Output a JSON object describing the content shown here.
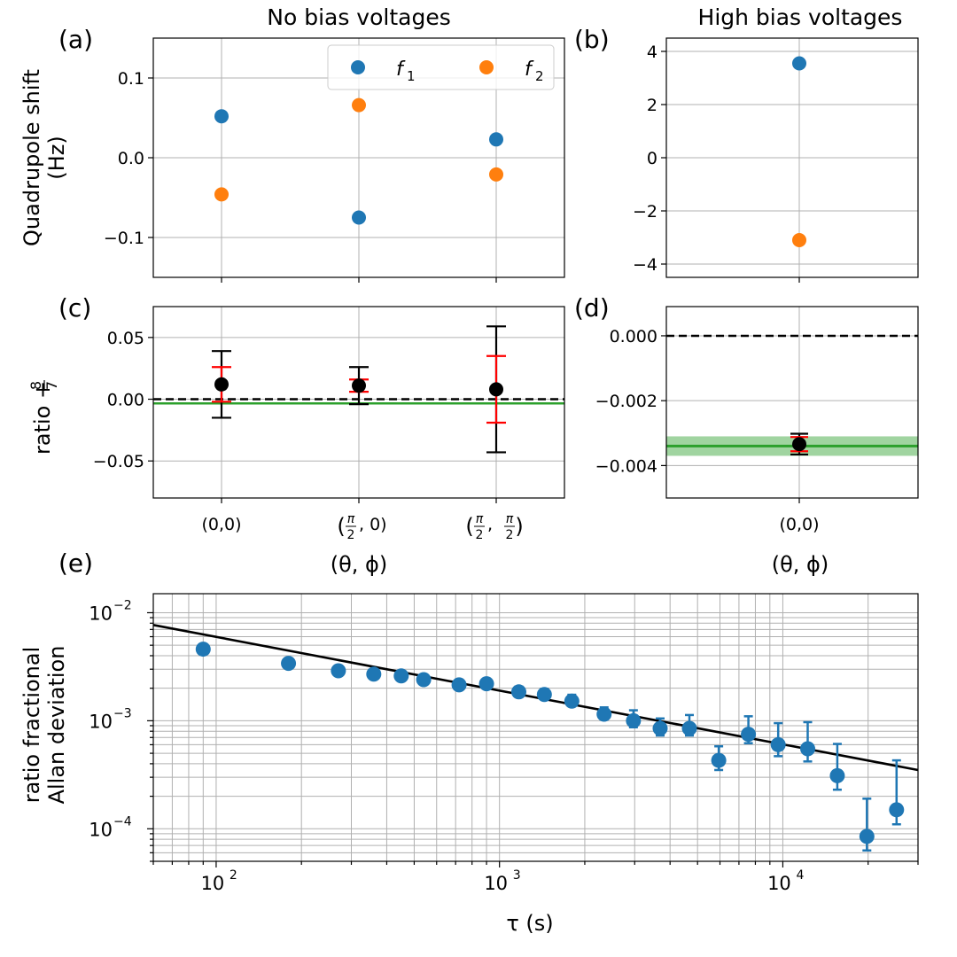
{
  "titles": {
    "left": "No bias voltages",
    "right": "High bias voltages"
  },
  "panel_labels": [
    "(a)",
    "(b)",
    "(c)",
    "(d)",
    "(e)"
  ],
  "ylabels": {
    "top_line1": "Quadrupole shift",
    "top_line2": "(Hz)",
    "ratio_prefix": "ratio +",
    "ratio_num": "8",
    "ratio_den": "7",
    "allan_line1": "ratio fractional",
    "allan_line2": "Allan deviation"
  },
  "xlabels": {
    "theta_phi": "(θ, ϕ)",
    "tau": "τ (s)"
  },
  "colors": {
    "f1": "#1f77b4",
    "f2": "#ff7f0e",
    "black": "#000000",
    "red": "#ff0000",
    "green": "#2ca02c"
  },
  "legend": [
    {
      "name": "f",
      "sub": "1",
      "color": "#1f77b4"
    },
    {
      "name": "f",
      "sub": "2",
      "color": "#ff7f0e"
    }
  ],
  "chart_data": [
    {
      "id": "a",
      "type": "scatter",
      "categories": [
        "(0,0)",
        "(π/2, 0)",
        "(π/2, π/2)"
      ],
      "ylim": [
        -0.15,
        0.15
      ],
      "yticks": [
        -0.1,
        0.0,
        0.1
      ],
      "ytick_labels": [
        "−0.1",
        "0.0",
        "0.1"
      ],
      "series": [
        {
          "name": "f1",
          "values": [
            0.052,
            -0.075,
            0.023
          ]
        },
        {
          "name": "f2",
          "values": [
            -0.046,
            0.066,
            -0.021
          ]
        }
      ]
    },
    {
      "id": "b",
      "type": "scatter",
      "categories": [
        "(0,0)"
      ],
      "ylim": [
        -4.5,
        4.5
      ],
      "yticks": [
        -4,
        -2,
        0,
        2,
        4
      ],
      "ytick_labels": [
        "−4",
        "−2",
        "0",
        "2",
        "4"
      ],
      "series": [
        {
          "name": "f1",
          "values": [
            3.55
          ]
        },
        {
          "name": "f2",
          "values": [
            -3.1
          ]
        }
      ]
    },
    {
      "id": "c",
      "type": "scatter",
      "categories": [
        "(0,0)",
        "(π/2, 0)",
        "(π/2, π/2)"
      ],
      "tick_labels": [
        {
          "text": "(0,0)"
        },
        {
          "pre": "(",
          "f1": "π",
          "d1": "2",
          "mid": ", 0)"
        },
        {
          "pre": "(",
          "f1": "π",
          "d1": "2",
          "mid": ", ",
          "f2": "π",
          "d2": "2",
          "post": ")"
        }
      ],
      "ylim": [
        -0.08,
        0.075
      ],
      "yticks": [
        -0.05,
        0.0,
        0.05
      ],
      "ytick_labels": [
        "−0.05",
        "0.00",
        "0.05"
      ],
      "points": [
        {
          "y": 0.012,
          "err_black": 0.027,
          "err_red": 0.014
        },
        {
          "y": 0.011,
          "err_black": 0.015,
          "err_red": 0.005
        },
        {
          "y": 0.008,
          "err_black": 0.051,
          "err_red": 0.027
        }
      ],
      "reference_dashed": 0.0,
      "green_line": -0.0034
    },
    {
      "id": "d",
      "type": "scatter",
      "categories": [
        "(0,0)"
      ],
      "ylim": [
        -0.005,
        0.0009
      ],
      "yticks": [
        -0.004,
        -0.002,
        0.0
      ],
      "ytick_labels": [
        "−0.004",
        "−0.002",
        "0.000"
      ],
      "points": [
        {
          "y": -0.00334,
          "err_black": 0.00032,
          "err_red": 0.00022
        }
      ],
      "reference_dashed": 0.0,
      "green_line": -0.0034,
      "green_band": [
        -0.0037,
        -0.0031
      ]
    },
    {
      "id": "e",
      "type": "scatter",
      "xscale": "log",
      "yscale": "log",
      "xlim": [
        60,
        30000
      ],
      "ylim": [
        5e-05,
        0.015
      ],
      "xlabel": "τ (s)",
      "ylabel": "ratio fractional Allan deviation",
      "x": [
        90,
        180,
        270,
        360,
        450,
        540,
        720,
        900,
        1170,
        1440,
        1800,
        2340,
        2970,
        3690,
        4680,
        5940,
        7560,
        9630,
        12240,
        15570,
        19800,
        25200
      ],
      "y": [
        0.0046,
        0.0034,
        0.0029,
        0.0027,
        0.0026,
        0.0024,
        0.00215,
        0.0022,
        0.00185,
        0.00175,
        0.00152,
        0.00115,
        0.001,
        0.00085,
        0.00085,
        0.00043,
        0.00075,
        0.0006,
        0.00055,
        0.00031,
        8.5e-05,
        0.00015
      ],
      "err_low": [
        0.0001,
        0.0001,
        0.0001,
        0.0001,
        0.0001,
        0.0001,
        0.0001,
        0.0001,
        0.0001,
        0.0001,
        0.00012,
        0.00012,
        0.00013,
        0.00012,
        0.00012,
        8e-05,
        0.00013,
        0.00013,
        0.00013,
        8e-05,
        2.2e-05,
        4e-05
      ],
      "err_high": [
        0.0002,
        0.0002,
        0.0002,
        0.0002,
        0.0002,
        0.0002,
        0.0002,
        0.00022,
        0.00022,
        0.00022,
        0.00022,
        0.00018,
        0.00025,
        0.0002,
        0.00028,
        0.00015,
        0.00035,
        0.00035,
        0.00042,
        0.0003,
        0.000105,
        0.00028
      ],
      "fit_line": {
        "x0": 60,
        "y0": 0.0077,
        "x1": 30000,
        "y1": 0.00035
      },
      "xtick_major": [
        100,
        1000,
        10000
      ],
      "ytick_major": [
        0.0001,
        0.001,
        0.01
      ],
      "xtick_labels": [
        {
          "base": "10",
          "exp": "2"
        },
        {
          "base": "10",
          "exp": "3"
        },
        {
          "base": "10",
          "exp": "4"
        }
      ],
      "ytick_labels": [
        {
          "base": "10",
          "exp": "−4"
        },
        {
          "base": "10",
          "exp": "−3"
        },
        {
          "base": "10",
          "exp": "−2"
        }
      ]
    }
  ]
}
